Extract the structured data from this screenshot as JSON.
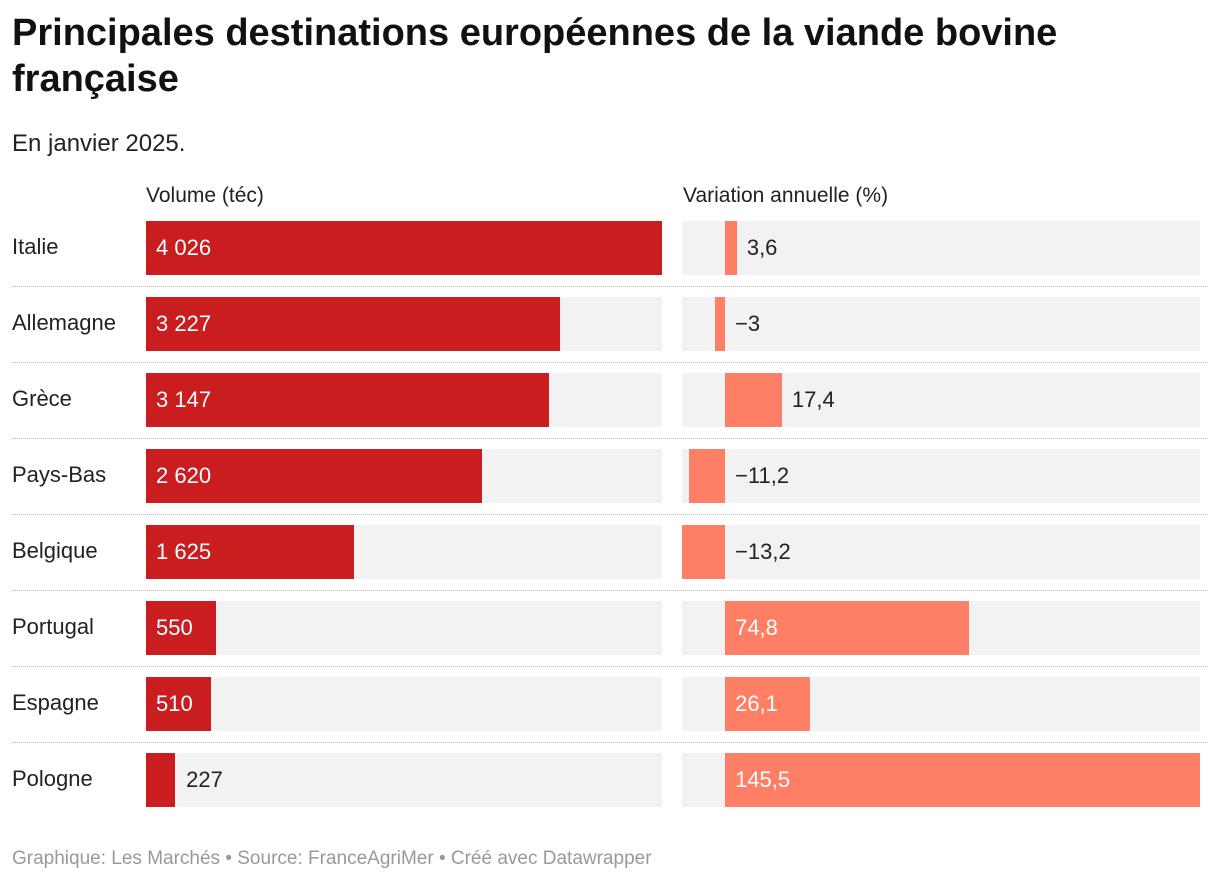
{
  "title": "Principales destinations européennes de la viande bovine française",
  "subtitle": "En janvier 2025.",
  "footer": "Graphique: Les Marchés • Source: FranceAgriMer • Créé avec Datawrapper",
  "colors": {
    "volume": "#c91d1f",
    "variation": "#ff7f66",
    "track": "#f2f2f2"
  },
  "chart_data": {
    "type": "bar",
    "orientation": "horizontal",
    "categories": [
      "Italie",
      "Allemagne",
      "Grèce",
      "Pays-Bas",
      "Belgique",
      "Portugal",
      "Espagne",
      "Pologne"
    ],
    "series": [
      {
        "name": "Volume (téc)",
        "values": [
          4026,
          3227,
          3147,
          2620,
          1625,
          550,
          510,
          227
        ],
        "labels": [
          "4 026",
          "3 227",
          "3 147",
          "2 620",
          "1 625",
          "550",
          "510",
          "227"
        ],
        "xlim": [
          0,
          4026
        ]
      },
      {
        "name": "Variation annuelle (%)",
        "values": [
          3.6,
          -3,
          17.4,
          -11.2,
          -13.2,
          74.8,
          26.1,
          145.5
        ],
        "labels": [
          "3,6",
          "−3",
          "17,4",
          "−11,2",
          "−13,2",
          "74,8",
          "26,1",
          "145,5"
        ],
        "xlim": [
          -13.2,
          145.5
        ]
      }
    ]
  }
}
